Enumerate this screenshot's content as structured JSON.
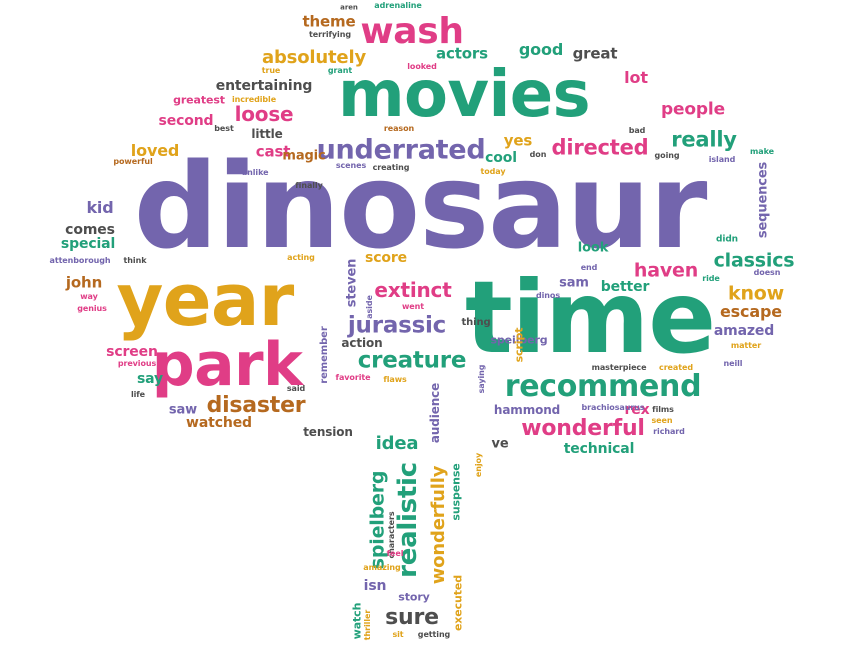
{
  "palette": {
    "purple": "#7365ad",
    "green": "#22a07a",
    "orange": "#e0a31b",
    "pink": "#e03d86",
    "brown": "#b5691f",
    "gray": "#4e4e4e"
  },
  "words": [
    {
      "text": "dinosaur",
      "color": "purple"
    },
    {
      "text": "movies",
      "color": "green"
    },
    {
      "text": "time",
      "color": "green"
    },
    {
      "text": "year",
      "color": "orange"
    },
    {
      "text": "park",
      "color": "pink"
    },
    {
      "text": "recommend",
      "color": "green"
    },
    {
      "text": "wash",
      "color": "pink"
    },
    {
      "text": "underrated",
      "color": "purple"
    },
    {
      "text": "creature",
      "color": "green"
    },
    {
      "text": "jurassic",
      "color": "purple"
    },
    {
      "text": "extinct",
      "color": "pink"
    },
    {
      "text": "wonderful",
      "color": "pink"
    },
    {
      "text": "disaster",
      "color": "brown"
    },
    {
      "text": "absolutely",
      "color": "orange"
    },
    {
      "text": "loose",
      "color": "pink"
    },
    {
      "text": "really",
      "color": "green"
    },
    {
      "text": "directed",
      "color": "pink"
    },
    {
      "text": "classics",
      "color": "green"
    },
    {
      "text": "haven",
      "color": "pink"
    },
    {
      "text": "know",
      "color": "orange"
    },
    {
      "text": "escape",
      "color": "brown"
    },
    {
      "text": "people",
      "color": "pink"
    },
    {
      "text": "sure",
      "color": "gray"
    },
    {
      "text": "realistic",
      "color": "green"
    },
    {
      "text": "spielberg",
      "color": "green"
    },
    {
      "text": "wonderfully",
      "color": "orange"
    },
    {
      "text": "idea",
      "color": "green"
    },
    {
      "text": "good",
      "color": "green"
    },
    {
      "text": "great",
      "color": "gray"
    },
    {
      "text": "lot",
      "color": "pink"
    },
    {
      "text": "actors",
      "color": "green"
    },
    {
      "text": "theme",
      "color": "brown"
    },
    {
      "text": "entertaining",
      "color": "gray"
    },
    {
      "text": "loved",
      "color": "orange"
    },
    {
      "text": "cast",
      "color": "pink"
    },
    {
      "text": "magic",
      "color": "brown"
    },
    {
      "text": "yes",
      "color": "orange"
    },
    {
      "text": "cool",
      "color": "green"
    },
    {
      "text": "second",
      "color": "pink"
    },
    {
      "text": "kid",
      "color": "purple"
    },
    {
      "text": "comes",
      "color": "gray"
    },
    {
      "text": "special",
      "color": "green"
    },
    {
      "text": "john",
      "color": "brown"
    },
    {
      "text": "screen",
      "color": "pink"
    },
    {
      "text": "say",
      "color": "green"
    },
    {
      "text": "saw",
      "color": "purple"
    },
    {
      "text": "watched",
      "color": "brown"
    },
    {
      "text": "tension",
      "color": "gray"
    },
    {
      "text": "score",
      "color": "orange"
    },
    {
      "text": "steven",
      "color": "purple"
    },
    {
      "text": "action",
      "color": "gray"
    },
    {
      "text": "sam",
      "color": "purple"
    },
    {
      "text": "better",
      "color": "green"
    },
    {
      "text": "look",
      "color": "green"
    },
    {
      "text": "amazed",
      "color": "purple"
    },
    {
      "text": "hammond",
      "color": "purple"
    },
    {
      "text": "rex",
      "color": "pink"
    },
    {
      "text": "technical",
      "color": "green"
    },
    {
      "text": "ve",
      "color": "gray"
    },
    {
      "text": "isn",
      "color": "purple"
    },
    {
      "text": "sequences",
      "color": "purple"
    },
    {
      "text": "little",
      "color": "gray"
    },
    {
      "text": "greatest",
      "color": "pink"
    },
    {
      "text": "speilberg",
      "color": "purple"
    },
    {
      "text": "audience",
      "color": "purple"
    },
    {
      "text": "suspense",
      "color": "green"
    },
    {
      "text": "executed",
      "color": "orange"
    },
    {
      "text": "script",
      "color": "orange"
    },
    {
      "text": "story",
      "color": "purple"
    },
    {
      "text": "watch",
      "color": "green"
    },
    {
      "text": "thing",
      "color": "gray"
    },
    {
      "text": "remember",
      "color": "purple"
    },
    {
      "text": "adrenaline",
      "color": "green"
    },
    {
      "text": "aren",
      "color": "gray"
    },
    {
      "text": "terrifying",
      "color": "gray"
    },
    {
      "text": "true",
      "color": "orange"
    },
    {
      "text": "grant",
      "color": "green"
    },
    {
      "text": "looked",
      "color": "pink"
    },
    {
      "text": "incredible",
      "color": "orange"
    },
    {
      "text": "best",
      "color": "gray"
    },
    {
      "text": "reason",
      "color": "brown"
    },
    {
      "text": "powerful",
      "color": "brown"
    },
    {
      "text": "unlike",
      "color": "purple"
    },
    {
      "text": "finally",
      "color": "gray"
    },
    {
      "text": "scenes",
      "color": "purple"
    },
    {
      "text": "creating",
      "color": "gray"
    },
    {
      "text": "today",
      "color": "orange"
    },
    {
      "text": "don",
      "color": "gray"
    },
    {
      "text": "bad",
      "color": "gray"
    },
    {
      "text": "going",
      "color": "gray"
    },
    {
      "text": "make",
      "color": "green"
    },
    {
      "text": "island",
      "color": "purple"
    },
    {
      "text": "didn",
      "color": "green"
    },
    {
      "text": "attenborough",
      "color": "purple"
    },
    {
      "text": "think",
      "color": "gray"
    },
    {
      "text": "acting",
      "color": "orange"
    },
    {
      "text": "way",
      "color": "pink"
    },
    {
      "text": "genius",
      "color": "pink"
    },
    {
      "text": "end",
      "color": "purple"
    },
    {
      "text": "ride",
      "color": "green"
    },
    {
      "text": "doesn",
      "color": "purple"
    },
    {
      "text": "aside",
      "color": "purple"
    },
    {
      "text": "went",
      "color": "pink"
    },
    {
      "text": "dinos",
      "color": "purple"
    },
    {
      "text": "matter",
      "color": "orange"
    },
    {
      "text": "neill",
      "color": "purple"
    },
    {
      "text": "previous",
      "color": "pink"
    },
    {
      "text": "life",
      "color": "gray"
    },
    {
      "text": "said",
      "color": "gray"
    },
    {
      "text": "favorite",
      "color": "pink"
    },
    {
      "text": "flaws",
      "color": "orange"
    },
    {
      "text": "saying",
      "color": "purple"
    },
    {
      "text": "masterpiece",
      "color": "gray"
    },
    {
      "text": "created",
      "color": "orange"
    },
    {
      "text": "brachiosaurus",
      "color": "purple"
    },
    {
      "text": "films",
      "color": "gray"
    },
    {
      "text": "seen",
      "color": "orange"
    },
    {
      "text": "richard",
      "color": "purple"
    },
    {
      "text": "enjoy",
      "color": "orange"
    },
    {
      "text": "characters",
      "color": "gray"
    },
    {
      "text": "feel",
      "color": "pink"
    },
    {
      "text": "amazing",
      "color": "orange"
    },
    {
      "text": "thriller",
      "color": "orange"
    },
    {
      "text": "sit",
      "color": "orange"
    },
    {
      "text": "getting",
      "color": "gray"
    }
  ]
}
